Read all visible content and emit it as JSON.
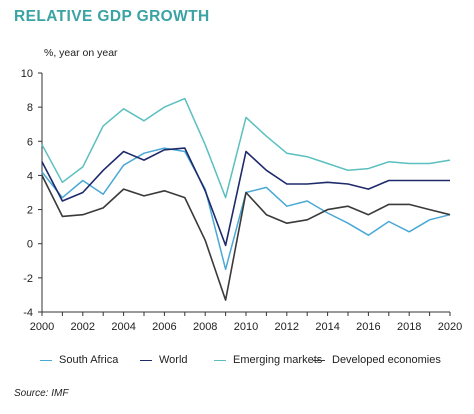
{
  "title": "RELATIVE GDP GROWTH",
  "source": "Source: IMF",
  "colors": {
    "title": "#3aa3a3",
    "south_africa": "#4aa8d6",
    "world": "#1f2a6b",
    "emerging": "#5bbfbf",
    "developed": "#3a3a3a",
    "axis": "#333333"
  },
  "chart_data": {
    "type": "line",
    "title": "RELATIVE GDP GROWTH",
    "ylabel": "%, year on year",
    "xlabel": "",
    "xlim": [
      2000,
      2020
    ],
    "ylim": [
      -4,
      10
    ],
    "grid": false,
    "legend_position": "bottom",
    "x": [
      2000,
      2001,
      2002,
      2003,
      2004,
      2005,
      2006,
      2007,
      2008,
      2009,
      2010,
      2011,
      2012,
      2013,
      2014,
      2015,
      2016,
      2017,
      2018,
      2019,
      2020
    ],
    "x_ticks": [
      "2000",
      "2002",
      "2004",
      "2006",
      "2008",
      "2010",
      "2012",
      "2014",
      "2016",
      "2018",
      "2020"
    ],
    "y_ticks": [
      "10",
      "8",
      "6",
      "4",
      "2",
      "0",
      "-2",
      "-4"
    ],
    "series": [
      {
        "name": "South Africa",
        "color": "#4aa8d6",
        "values": [
          4.2,
          2.7,
          3.7,
          2.9,
          4.6,
          5.3,
          5.6,
          5.4,
          3.2,
          -1.5,
          3.0,
          3.3,
          2.2,
          2.5,
          1.8,
          1.2,
          0.5,
          1.3,
          0.7,
          1.4,
          1.7
        ]
      },
      {
        "name": "World",
        "color": "#1f2a6b",
        "values": [
          4.8,
          2.5,
          3.0,
          4.3,
          5.4,
          4.9,
          5.5,
          5.6,
          3.1,
          -0.1,
          5.4,
          4.3,
          3.5,
          3.5,
          3.6,
          3.5,
          3.2,
          3.7,
          3.7,
          3.7,
          3.7
        ]
      },
      {
        "name": "Emerging markets",
        "color": "#5bbfbf",
        "values": [
          5.8,
          3.6,
          4.5,
          6.9,
          7.9,
          7.2,
          8.0,
          8.5,
          5.8,
          2.7,
          7.4,
          6.3,
          5.3,
          5.1,
          4.7,
          4.3,
          4.4,
          4.8,
          4.7,
          4.7,
          4.9
        ]
      },
      {
        "name": "Developed economies",
        "color": "#3a3a3a",
        "values": [
          4.0,
          1.6,
          1.7,
          2.1,
          3.2,
          2.8,
          3.1,
          2.7,
          0.2,
          -3.3,
          3.0,
          1.7,
          1.2,
          1.4,
          2.0,
          2.2,
          1.7,
          2.3,
          2.3,
          2.0,
          1.7
        ]
      }
    ]
  }
}
